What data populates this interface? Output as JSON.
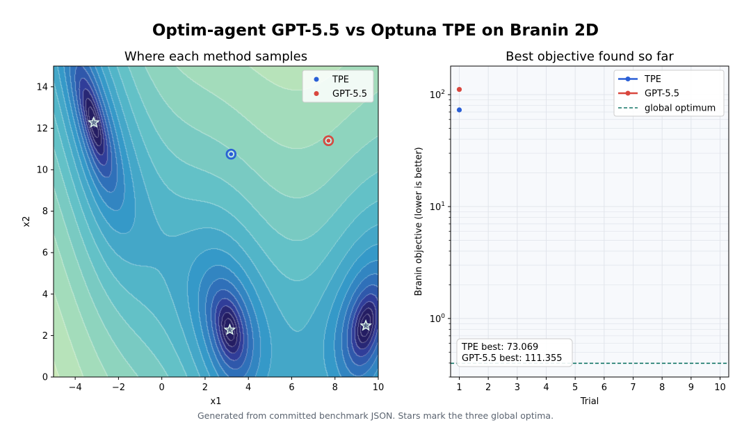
{
  "figure": {
    "title": "Optim-agent GPT-5.5 vs Optuna TPE on Branin 2D",
    "footnote": "Generated from committed benchmark JSON. Stars mark the three global optima."
  },
  "colors": {
    "tpe": "#2a5fd6",
    "gpt": "#d9473e",
    "optimum": "#127566",
    "grid": "#dfe3ea",
    "panel_bg": "#f7f9fc"
  },
  "chart_data": [
    {
      "type": "contour",
      "title": "Where each method samples",
      "xlabel": "x1",
      "ylabel": "x2",
      "xlim": [
        -5,
        10
      ],
      "ylim": [
        0,
        15
      ],
      "xticks": [
        -4,
        -2,
        0,
        2,
        4,
        6,
        8,
        10
      ],
      "yticks": [
        0,
        2,
        4,
        6,
        8,
        10,
        12,
        14
      ],
      "function": "branin",
      "legend": {
        "placement": "top-right",
        "entries": [
          "TPE",
          "GPT-5.5"
        ]
      },
      "series": [
        {
          "name": "TPE",
          "points": [
            {
              "x": 3.2,
              "y": 10.75
            }
          ]
        },
        {
          "name": "GPT-5.5",
          "points": [
            {
              "x": 7.7,
              "y": 11.4
            }
          ]
        }
      ],
      "optima": [
        {
          "x": -3.1416,
          "y": 12.275
        },
        {
          "x": 3.1416,
          "y": 2.275
        },
        {
          "x": 9.4248,
          "y": 2.475
        }
      ]
    },
    {
      "type": "line",
      "title": "Best objective found so far",
      "xlabel": "Trial",
      "ylabel": "Branin objective (lower is better)",
      "xlim": [
        0.7,
        10.3
      ],
      "ylim": [
        0.3,
        180
      ],
      "yscale": "log",
      "xticks": [
        1,
        2,
        3,
        4,
        5,
        6,
        7,
        8,
        9,
        10
      ],
      "yticks": [
        {
          "value": 1,
          "base": "10",
          "exp": "0"
        },
        {
          "value": 10,
          "base": "10",
          "exp": "1"
        },
        {
          "value": 100,
          "base": "10",
          "exp": "2"
        }
      ],
      "grid": true,
      "legend": {
        "placement": "top-right",
        "entries": [
          "TPE",
          "GPT-5.5",
          "global optimum"
        ]
      },
      "series": [
        {
          "name": "TPE",
          "x": [
            1
          ],
          "y": [
            73.069
          ]
        },
        {
          "name": "GPT-5.5",
          "x": [
            1
          ],
          "y": [
            111.355
          ]
        }
      ],
      "reference_line": {
        "name": "global optimum",
        "y": 0.397887
      },
      "annotation": [
        "TPE best: 73.069",
        "GPT-5.5 best: 111.355"
      ]
    }
  ]
}
